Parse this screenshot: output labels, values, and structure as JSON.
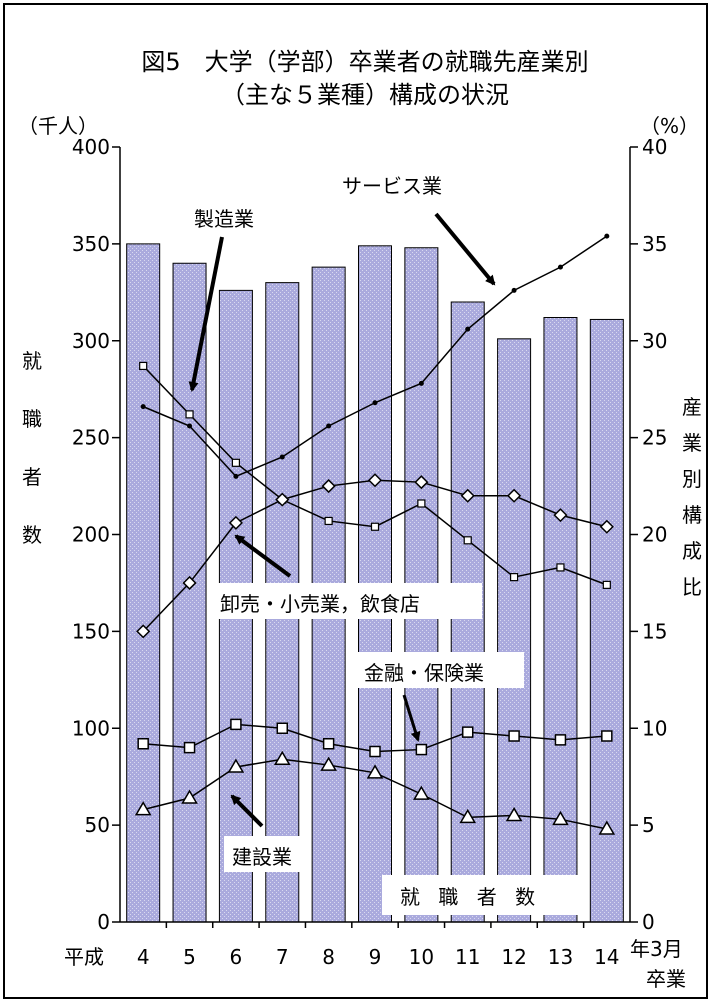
{
  "chart_data": {
    "type": "bar+line",
    "title_line1": "図5　大学（学部）卒業者の就職先産業別",
    "title_line2": "（主な５業種）構成の状況",
    "left_unit": "（千人）",
    "right_unit": "（%）",
    "left_axis_label": [
      "就",
      "職",
      "者",
      "数"
    ],
    "right_axis_label": [
      "産",
      "業",
      "別",
      "構",
      "成",
      "比"
    ],
    "x_prefix": "平成",
    "x_suffix_line1": "年3月",
    "x_suffix_line2": "卒業",
    "categories": [
      "4",
      "5",
      "6",
      "7",
      "8",
      "9",
      "10",
      "11",
      "12",
      "13",
      "14"
    ],
    "left_ticks": [
      "0",
      "50",
      "100",
      "150",
      "200",
      "250",
      "300",
      "350",
      "400"
    ],
    "right_ticks": [
      "0",
      "5",
      "10",
      "15",
      "20",
      "25",
      "30",
      "35",
      "40"
    ],
    "left_ylim": [
      0,
      400
    ],
    "right_ylim": [
      0,
      40
    ],
    "bars": {
      "name": "就 職 者 数",
      "color": "#aaaadd",
      "values": [
        350,
        340,
        326,
        330,
        338,
        349,
        348,
        320,
        301,
        312,
        311
      ]
    },
    "series": [
      {
        "name": "サービス業",
        "marker": "dot",
        "values": [
          26.6,
          25.6,
          23.0,
          24.0,
          25.6,
          26.8,
          27.8,
          30.6,
          32.6,
          33.8,
          35.4
        ]
      },
      {
        "name": "製造業",
        "marker": "square-open",
        "values": [
          28.7,
          26.2,
          23.7,
          21.8,
          20.7,
          20.4,
          21.6,
          19.7,
          17.8,
          18.3,
          17.4
        ]
      },
      {
        "name": "卸売・小売業，飲食店",
        "marker": "diamond",
        "values": [
          15.0,
          17.5,
          20.6,
          21.8,
          22.5,
          22.8,
          22.7,
          22.0,
          22.0,
          21.0,
          20.4
        ]
      },
      {
        "name": "金融・保険業",
        "marker": "square",
        "values": [
          9.2,
          9.0,
          10.2,
          10.0,
          9.2,
          8.8,
          8.9,
          9.8,
          9.6,
          9.4,
          9.6
        ]
      },
      {
        "name": "建設業",
        "marker": "triangle",
        "values": [
          5.8,
          6.4,
          8.0,
          8.4,
          8.1,
          7.7,
          6.6,
          5.4,
          5.5,
          5.3,
          4.8
        ]
      }
    ]
  }
}
